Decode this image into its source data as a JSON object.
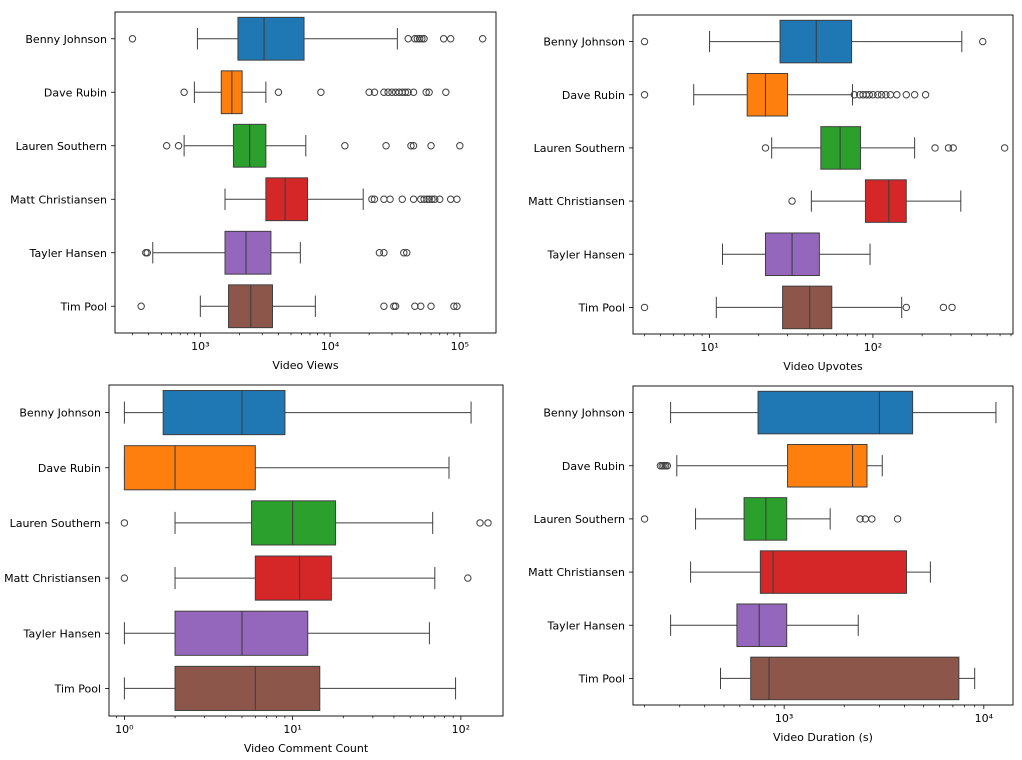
{
  "figure": {
    "colors": {
      "Benny Johnson": "#1f77b4",
      "Dave Rubin": "#ff7f0e",
      "Lauren Southern": "#2ca02c",
      "Matt Christiansen": "#d62728",
      "Tayler Hansen": "#9467bd",
      "Tim Pool": "#8c564b"
    },
    "categories": [
      "Benny Johnson",
      "Dave Rubin",
      "Lauren Southern",
      "Matt Christiansen",
      "Tayler Hansen",
      "Tim Pool"
    ]
  },
  "chart_data": [
    {
      "type": "boxplot",
      "orientation": "horizontal",
      "xlabel": "Video Views",
      "ylabel": "",
      "xscale": "log",
      "xlim": [
        220,
        190000
      ],
      "xticks": [
        1000,
        10000,
        100000
      ],
      "xtick_labels": [
        "10³",
        "10⁴",
        "10⁵"
      ],
      "boxes": [
        {
          "name": "Benny Johnson",
          "whislo": 950,
          "q1": 1950,
          "med": 3100,
          "q3": 6300,
          "whishi": 33000,
          "fliers": [
            300,
            40000,
            45000,
            47000,
            49000,
            51000,
            53000,
            75000,
            85000,
            150000
          ]
        },
        {
          "name": "Dave Rubin",
          "whislo": 900,
          "q1": 1450,
          "med": 1750,
          "q3": 2100,
          "whishi": 3200,
          "fliers": [
            750,
            4000,
            8500,
            20000,
            22000,
            26000,
            28000,
            30000,
            32000,
            34000,
            36000,
            38000,
            40000,
            44000,
            55000,
            58000,
            78000
          ]
        },
        {
          "name": "Lauren Southern",
          "whislo": 750,
          "q1": 1800,
          "med": 2400,
          "q3": 3200,
          "whishi": 6500,
          "fliers": [
            550,
            680,
            13000,
            27000,
            42000,
            44000,
            60000,
            100000
          ]
        },
        {
          "name": "Matt Christiansen",
          "whislo": 1550,
          "q1": 3200,
          "med": 4500,
          "q3": 6700,
          "whishi": 18000,
          "fliers": [
            21000,
            22000,
            26000,
            29000,
            36000,
            44000,
            50000,
            53000,
            56000,
            58000,
            61000,
            64000,
            70000,
            85000,
            95000
          ]
        },
        {
          "name": "Tayler Hansen",
          "whislo": 430,
          "q1": 1550,
          "med": 2250,
          "q3": 3500,
          "whishi": 5900,
          "fliers": [
            380,
            390,
            24000,
            26000,
            37000,
            39000
          ]
        },
        {
          "name": "Tim Pool",
          "whislo": 1000,
          "q1": 1650,
          "med": 2450,
          "q3": 3600,
          "whishi": 7700,
          "fliers": [
            350,
            26000,
            31000,
            32000,
            45000,
            50000,
            60000,
            90000,
            95000
          ]
        }
      ]
    },
    {
      "type": "boxplot",
      "orientation": "horizontal",
      "xlabel": "Video Upvotes",
      "ylabel": "",
      "xscale": "log",
      "xlim": [
        3.4,
        720
      ],
      "xticks": [
        10,
        100
      ],
      "xtick_labels": [
        "10¹",
        "10²"
      ],
      "boxes": [
        {
          "name": "Benny Johnson",
          "whislo": 10,
          "q1": 27,
          "med": 45,
          "q3": 74,
          "whishi": 350,
          "fliers": [
            4,
            470
          ]
        },
        {
          "name": "Dave Rubin",
          "whislo": 8,
          "q1": 17,
          "med": 22,
          "q3": 30,
          "whishi": 75,
          "fliers": [
            4,
            77,
            83,
            87,
            91,
            95,
            100,
            107,
            113,
            120,
            128,
            140,
            160,
            180,
            210
          ]
        },
        {
          "name": "Lauren Southern",
          "whislo": 24,
          "q1": 48,
          "med": 63,
          "q3": 84,
          "whishi": 180,
          "fliers": [
            22,
            240,
            290,
            310,
            640
          ]
        },
        {
          "name": "Matt Christiansen",
          "whislo": 42,
          "q1": 90,
          "med": 125,
          "q3": 160,
          "whishi": 345,
          "fliers": [
            32
          ]
        },
        {
          "name": "Tayler Hansen",
          "whislo": 12,
          "q1": 22,
          "med": 32,
          "q3": 47,
          "whishi": 96,
          "fliers": []
        },
        {
          "name": "Tim Pool",
          "whislo": 11,
          "q1": 28,
          "med": 41,
          "q3": 56,
          "whishi": 150,
          "fliers": [
            4,
            160,
            270,
            305
          ]
        }
      ]
    },
    {
      "type": "boxplot",
      "orientation": "horizontal",
      "xlabel": "Video Comment Count",
      "ylabel": "",
      "xscale": "log",
      "xlim": [
        0.81,
        178
      ],
      "xticks": [
        1,
        10,
        100
      ],
      "xtick_labels": [
        "10⁰",
        "10¹",
        "10²"
      ],
      "boxes": [
        {
          "name": "Benny Johnson",
          "whislo": 1,
          "q1": 1.7,
          "med": 5,
          "q3": 9,
          "whishi": 115,
          "fliers": []
        },
        {
          "name": "Dave Rubin",
          "whislo": 1,
          "q1": 1,
          "med": 2,
          "q3": 6,
          "whishi": 85,
          "fliers": []
        },
        {
          "name": "Lauren Southern",
          "whislo": 2,
          "q1": 5.7,
          "med": 10,
          "q3": 18,
          "whishi": 68,
          "fliers": [
            1,
            130,
            145
          ]
        },
        {
          "name": "Matt Christiansen",
          "whislo": 2,
          "q1": 6,
          "med": 11,
          "q3": 17,
          "whishi": 70,
          "fliers": [
            1,
            110
          ]
        },
        {
          "name": "Tayler Hansen",
          "whislo": 1,
          "q1": 2,
          "med": 5,
          "q3": 12.3,
          "whishi": 65,
          "fliers": []
        },
        {
          "name": "Tim Pool",
          "whislo": 1,
          "q1": 2,
          "med": 6,
          "q3": 14.5,
          "whishi": 93,
          "fliers": []
        }
      ]
    },
    {
      "type": "boxplot",
      "orientation": "horizontal",
      "xlabel": "Video Duration (s)",
      "ylabel": "",
      "xscale": "log",
      "xlim": [
        175,
        14000
      ],
      "xticks": [
        1000,
        10000
      ],
      "xtick_labels": [
        "10³",
        "10⁴"
      ],
      "boxes": [
        {
          "name": "Benny Johnson",
          "whislo": 270,
          "q1": 740,
          "med": 3000,
          "q3": 4400,
          "whishi": 11500,
          "fliers": []
        },
        {
          "name": "Dave Rubin",
          "whislo": 290,
          "q1": 1040,
          "med": 2200,
          "q3": 2600,
          "whishi": 3100,
          "fliers": [
            240,
            245,
            250,
            255,
            260
          ]
        },
        {
          "name": "Lauren Southern",
          "whislo": 360,
          "q1": 630,
          "med": 810,
          "q3": 1030,
          "whishi": 1700,
          "fliers": [
            200,
            2400,
            2550,
            2750,
            3700
          ]
        },
        {
          "name": "Matt Christiansen",
          "whislo": 340,
          "q1": 760,
          "med": 880,
          "q3": 4100,
          "whishi": 5400,
          "fliers": []
        },
        {
          "name": "Tayler Hansen",
          "whislo": 270,
          "q1": 580,
          "med": 750,
          "q3": 1030,
          "whishi": 2350,
          "fliers": []
        },
        {
          "name": "Tim Pool",
          "whislo": 480,
          "q1": 680,
          "med": 840,
          "q3": 7500,
          "whishi": 9000,
          "fliers": []
        }
      ]
    }
  ]
}
